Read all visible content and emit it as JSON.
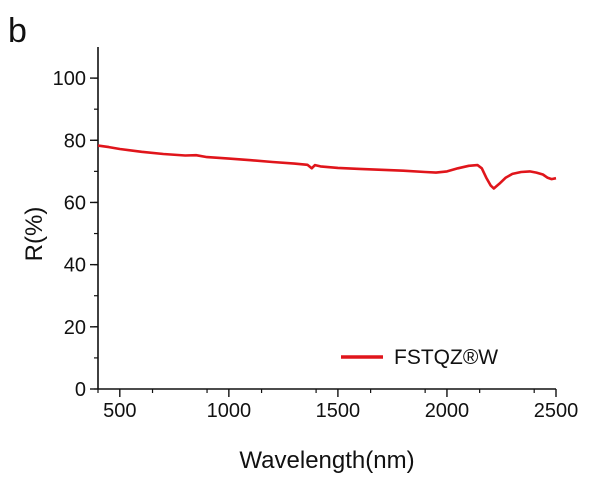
{
  "panel_label": "b",
  "chart_data": {
    "type": "line",
    "xlabel": "Wavelength(nm)",
    "ylabel": "R(%)",
    "xlim": [
      400,
      2500
    ],
    "ylim": [
      0,
      110
    ],
    "xticks": [
      500,
      1000,
      1500,
      2000,
      2500
    ],
    "yticks": [
      0,
      20,
      40,
      60,
      80,
      100
    ],
    "x_minor_step": 250,
    "y_minor_step": 10,
    "grid": false,
    "legend_position": "bottom-right",
    "series": [
      {
        "name": "FSTQZ®W",
        "color": "#e0151b",
        "x": [
          400,
          450,
          500,
          600,
          700,
          800,
          850,
          900,
          1000,
          1100,
          1200,
          1300,
          1360,
          1380,
          1395,
          1420,
          1500,
          1600,
          1700,
          1800,
          1900,
          1950,
          2000,
          2050,
          2100,
          2140,
          2160,
          2180,
          2200,
          2215,
          2240,
          2270,
          2300,
          2340,
          2380,
          2410,
          2440,
          2460,
          2480,
          2500
        ],
        "values": [
          78.3,
          77.8,
          77.2,
          76.3,
          75.6,
          75.1,
          75.2,
          74.6,
          74.1,
          73.6,
          73.0,
          72.5,
          72.1,
          71.0,
          72.0,
          71.6,
          71.1,
          70.8,
          70.5,
          70.2,
          69.8,
          69.6,
          70.0,
          71.0,
          71.8,
          72.0,
          71.0,
          68.0,
          65.5,
          64.5,
          66.0,
          68.0,
          69.2,
          69.8,
          70.0,
          69.6,
          69.0,
          68.0,
          67.5,
          67.8
        ]
      }
    ]
  }
}
